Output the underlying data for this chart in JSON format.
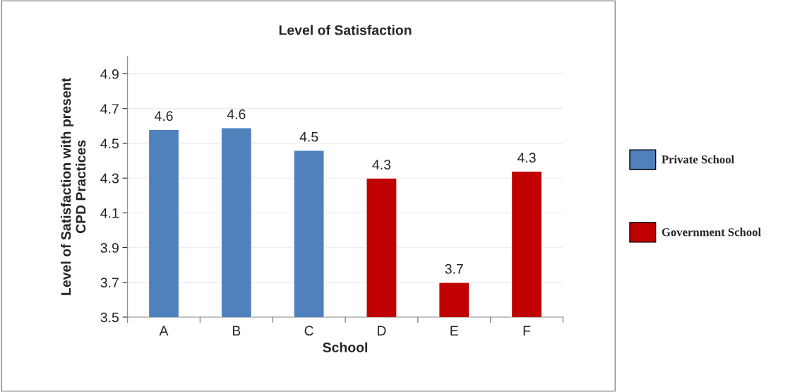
{
  "chart_data": {
    "type": "bar",
    "title": "Level of Satisfaction",
    "xlabel": "School",
    "ylabel": "Level of Satisfaction with present\nCPD Practices",
    "categories": [
      "A",
      "B",
      "C",
      "D",
      "E",
      "F"
    ],
    "series": [
      {
        "name": "Private School",
        "color": "#4f81bd",
        "values": [
          4.58,
          4.59,
          4.46,
          null,
          null,
          null
        ],
        "value_labels": [
          "4.6",
          "4.6",
          "4.5",
          null,
          null,
          null
        ]
      },
      {
        "name": "Government School",
        "color": "#c00000",
        "values": [
          null,
          null,
          null,
          4.3,
          3.7,
          4.34
        ],
        "value_labels": [
          null,
          null,
          null,
          "4.3",
          "3.7",
          "4.3"
        ]
      }
    ],
    "ylim": [
      3.5,
      5.0
    ],
    "yticks": [
      3.5,
      3.7,
      3.9,
      4.1,
      4.3,
      4.5,
      4.7,
      4.9
    ],
    "grid": "y",
    "legend": "right"
  }
}
